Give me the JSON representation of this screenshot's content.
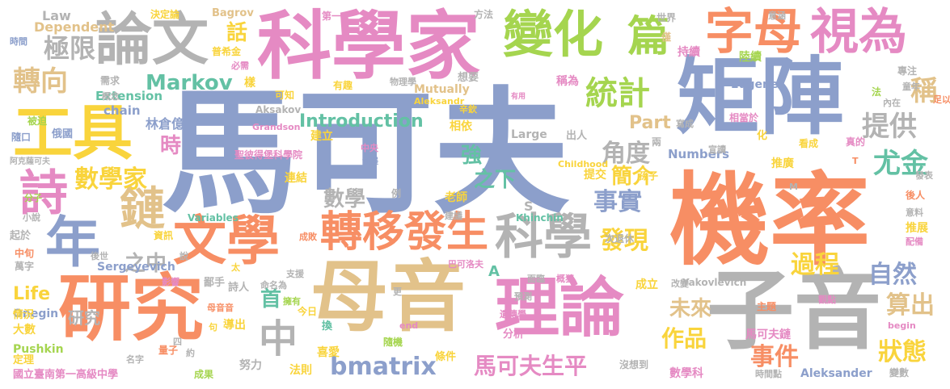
{
  "palette": {
    "blue": "#8c9fcb",
    "orange": "#f78e64",
    "green": "#a5d54f",
    "yellow": "#f9d43c",
    "tan": "#e2c28a",
    "gray": "#b3b3b3",
    "pink": "#e58ac3",
    "teal": "#63c1a4"
  },
  "words": [
    {
      "text": "馬可夫",
      "color": "blue"
    },
    {
      "text": "機率",
      "color": "orange"
    },
    {
      "text": "矩陣",
      "color": "blue"
    },
    {
      "text": "子音",
      "color": "gray"
    },
    {
      "text": "母音",
      "color": "tan"
    },
    {
      "text": "科學家",
      "color": "pink"
    },
    {
      "text": "研究",
      "color": "orange"
    },
    {
      "text": "理論",
      "color": "pink"
    },
    {
      "text": "工具",
      "color": "yellow"
    },
    {
      "text": "論文",
      "color": "gray"
    },
    {
      "text": "變化",
      "color": "green"
    },
    {
      "text": "字母",
      "color": "orange"
    },
    {
      "text": "視為",
      "color": "pink"
    },
    {
      "text": "文學",
      "color": "orange"
    },
    {
      "text": "轉移",
      "color": "orange"
    },
    {
      "text": "發生",
      "color": "orange"
    },
    {
      "text": "科學",
      "color": "gray"
    },
    {
      "text": "年",
      "color": "blue"
    },
    {
      "text": "詩",
      "color": "pink"
    },
    {
      "text": "鏈",
      "color": "tan"
    },
    {
      "text": "篇",
      "color": "green"
    },
    {
      "text": "統計",
      "color": "green"
    },
    {
      "text": "Markov",
      "color": "teal"
    },
    {
      "text": "轉向",
      "color": "tan"
    },
    {
      "text": "極限",
      "color": "gray"
    },
    {
      "text": "數學家",
      "color": "yellow"
    },
    {
      "text": "中",
      "color": "gray"
    },
    {
      "text": "bmatrix",
      "color": "blue"
    },
    {
      "text": "馬可夫生平",
      "color": "pink"
    },
    {
      "text": "Introduction",
      "color": "teal"
    },
    {
      "text": "角度",
      "color": "gray"
    },
    {
      "text": "提供",
      "color": "gray"
    },
    {
      "text": "尤金",
      "color": "teal"
    },
    {
      "text": "事實",
      "color": "blue"
    },
    {
      "text": "發現",
      "color": "yellow"
    },
    {
      "text": "過程",
      "color": "yellow"
    },
    {
      "text": "自然",
      "color": "blue"
    },
    {
      "text": "算出",
      "color": "tan"
    },
    {
      "text": "未來",
      "color": "tan"
    },
    {
      "text": "作品",
      "color": "yellow"
    },
    {
      "text": "狀態",
      "color": "yellow"
    },
    {
      "text": "事件",
      "color": "orange"
    },
    {
      "text": "簡介",
      "color": "yellow"
    },
    {
      "text": "之下",
      "color": "teal"
    },
    {
      "text": "強",
      "color": "teal"
    },
    {
      "text": "數學",
      "color": "gray"
    },
    {
      "text": "之中",
      "color": "gray"
    },
    {
      "text": "首",
      "color": "teal"
    },
    {
      "text": "研究",
      "color": "gray"
    },
    {
      "text": "時",
      "color": "pink"
    },
    {
      "text": "話",
      "color": "yellow"
    },
    {
      "text": "稱",
      "color": "tan"
    },
    {
      "text": "Part",
      "color": "tan"
    },
    {
      "text": "Life",
      "color": "yellow"
    },
    {
      "text": "Law",
      "color": "gray"
    },
    {
      "text": "Dependent",
      "color": "tan"
    },
    {
      "text": "決定論",
      "color": "yellow"
    },
    {
      "text": "Bagrov",
      "color": "tan"
    },
    {
      "text": "第一",
      "color": "pink"
    },
    {
      "text": "方法",
      "color": "gray"
    },
    {
      "text": "世界",
      "color": "gray"
    },
    {
      "text": "僅",
      "color": "tan"
    },
    {
      "text": "時間",
      "color": "blue"
    },
    {
      "text": "Extension",
      "color": "teal"
    },
    {
      "text": "chain",
      "color": "blue"
    },
    {
      "text": "林倉億",
      "color": "blue"
    },
    {
      "text": "Large",
      "color": "gray"
    },
    {
      "text": "Mutually",
      "color": "tan"
    },
    {
      "text": "Eugene",
      "color": "blue"
    },
    {
      "text": "Numbers",
      "color": "blue"
    },
    {
      "text": "Aleksander",
      "color": "blue"
    },
    {
      "text": "Sergeyevich",
      "color": "blue"
    },
    {
      "text": "Onegin",
      "color": "blue"
    },
    {
      "text": "Pushkin",
      "color": "green"
    },
    {
      "text": "Variables",
      "color": "teal"
    },
    {
      "text": "Khinchin",
      "color": "teal"
    },
    {
      "text": "Yakovlevich",
      "color": "gray"
    },
    {
      "text": "Grandson",
      "color": "pink"
    },
    {
      "text": "Aksakov",
      "color": "gray"
    },
    {
      "text": "Childhood",
      "color": "yellow"
    },
    {
      "text": "Aleksandr",
      "color": "yellow"
    },
    {
      "text": "國立臺南第一高級中學",
      "color": "pink"
    },
    {
      "text": "聖彼得堡科學院",
      "color": "pink"
    },
    {
      "text": "巴可洛夫",
      "color": "pink"
    },
    {
      "text": "持續",
      "color": "pink"
    },
    {
      "text": "陸續",
      "color": "green"
    },
    {
      "text": "稱為",
      "color": "pink"
    },
    {
      "text": "連結",
      "color": "yellow"
    },
    {
      "text": "建立",
      "color": "yellow"
    },
    {
      "text": "相依",
      "color": "yellow"
    },
    {
      "text": "老師",
      "color": "yellow"
    },
    {
      "text": "提交",
      "color": "yellow"
    },
    {
      "text": "推廣",
      "color": "yellow"
    },
    {
      "text": "推展",
      "color": "yellow"
    },
    {
      "text": "看成",
      "color": "yellow"
    },
    {
      "text": "成立",
      "color": "yellow"
    },
    {
      "text": "導出",
      "color": "yellow"
    },
    {
      "text": "喜愛",
      "color": "yellow"
    },
    {
      "text": "法則",
      "color": "yellow"
    },
    {
      "text": "條件",
      "color": "yellow"
    },
    {
      "text": "馬可夫鏈",
      "color": "pink"
    },
    {
      "text": "數學科",
      "color": "pink"
    },
    {
      "text": "努力",
      "color": "gray"
    },
    {
      "text": "情況",
      "color": "yellow"
    },
    {
      "text": "大數",
      "color": "yellow"
    },
    {
      "text": "定理",
      "color": "yellow"
    },
    {
      "text": "起於",
      "color": "gray"
    },
    {
      "text": "中旬",
      "color": "orange"
    },
    {
      "text": "萬字",
      "color": "gray"
    },
    {
      "text": "後世",
      "color": "gray"
    },
    {
      "text": "小說",
      "color": "gray"
    },
    {
      "text": "分子",
      "color": "green"
    },
    {
      "text": "隨口",
      "color": "blue"
    },
    {
      "text": "俄國",
      "color": "blue"
    },
    {
      "text": "被迫",
      "color": "green"
    },
    {
      "text": "需求",
      "color": "gray"
    },
    {
      "text": "概念",
      "color": "gray"
    },
    {
      "text": "阿克薩可夫",
      "color": "gray"
    },
    {
      "text": "普希金",
      "color": "yellow"
    },
    {
      "text": "必需",
      "color": "pink"
    },
    {
      "text": "樣",
      "color": "yellow"
    },
    {
      "text": "可知",
      "color": "yellow"
    },
    {
      "text": "有趣",
      "color": "yellow"
    },
    {
      "text": "物理學",
      "color": "gray"
    },
    {
      "text": "想要",
      "color": "gray"
    },
    {
      "text": "有用",
      "color": "pink"
    },
    {
      "text": "專注",
      "color": "gray"
    },
    {
      "text": "童年",
      "color": "gray"
    },
    {
      "text": "內在",
      "color": "gray"
    },
    {
      "text": "法",
      "color": "green"
    },
    {
      "text": "辛欽",
      "color": "yellow"
    },
    {
      "text": "中央",
      "color": "pink"
    },
    {
      "text": "發展",
      "color": "blue"
    },
    {
      "text": "例",
      "color": "gray"
    },
    {
      "text": "S",
      "color": "gray"
    },
    {
      "text": "出人",
      "color": "gray"
    },
    {
      "text": "寫成",
      "color": "gray"
    },
    {
      "text": "宣讀",
      "color": "gray"
    },
    {
      "text": "孫子",
      "color": "yellow"
    },
    {
      "text": "化",
      "color": "yellow"
    },
    {
      "text": "相當於",
      "color": "pink"
    },
    {
      "text": "真的",
      "color": "pink"
    },
    {
      "text": "發表",
      "color": "gray"
    },
    {
      "text": "後人",
      "color": "orange"
    },
    {
      "text": "意料",
      "color": "gray"
    },
    {
      "text": "配備",
      "color": "pink"
    },
    {
      "text": "主題",
      "color": "orange"
    },
    {
      "text": "觀點",
      "color": "pink"
    },
    {
      "text": "改變",
      "color": "gray"
    },
    {
      "text": "預測",
      "color": "gray"
    },
    {
      "text": "遺傳學",
      "color": "pink"
    },
    {
      "text": "概狂",
      "color": "pink"
    },
    {
      "text": "面臨",
      "color": "gray"
    },
    {
      "text": "分析",
      "color": "pink"
    },
    {
      "text": "隨機",
      "color": "green"
    },
    {
      "text": "今日",
      "color": "yellow"
    },
    {
      "text": "換",
      "color": "teal"
    },
    {
      "text": "更",
      "color": "gray"
    },
    {
      "text": "擁有",
      "color": "green"
    },
    {
      "text": "支援",
      "color": "gray"
    },
    {
      "text": "成敗",
      "color": "orange"
    },
    {
      "text": "命名為",
      "color": "gray"
    },
    {
      "text": "詩人",
      "color": "gray"
    },
    {
      "text": "鄙手",
      "color": "gray"
    },
    {
      "text": "影響",
      "color": "pink"
    },
    {
      "text": "母音音",
      "color": "orange"
    },
    {
      "text": "量子",
      "color": "orange"
    },
    {
      "text": "成果",
      "color": "green"
    },
    {
      "text": "約",
      "color": "gray"
    },
    {
      "text": "四",
      "color": "gray"
    },
    {
      "text": "句",
      "color": "yellow"
    },
    {
      "text": "名字",
      "color": "gray"
    },
    {
      "text": "沒想到",
      "color": "gray"
    },
    {
      "text": "時間點",
      "color": "gray"
    },
    {
      "text": "變數",
      "color": "gray"
    },
    {
      "text": "次退休",
      "color": "gray"
    },
    {
      "text": "建議",
      "color": "gray"
    },
    {
      "text": "兩",
      "color": "gray"
    },
    {
      "text": "足以",
      "color": "orange"
    },
    {
      "text": "意涵",
      "color": "gray"
    },
    {
      "text": "A",
      "color": "teal"
    },
    {
      "text": "M",
      "color": "gray"
    },
    {
      "text": "T",
      "color": "orange"
    },
    {
      "text": "end",
      "color": "pink"
    },
    {
      "text": "begin",
      "color": "pink"
    },
    {
      "text": "說",
      "color": "gray"
    },
    {
      "text": "太",
      "color": "yellow"
    },
    {
      "text": "資訊",
      "color": "yellow"
    }
  ]
}
